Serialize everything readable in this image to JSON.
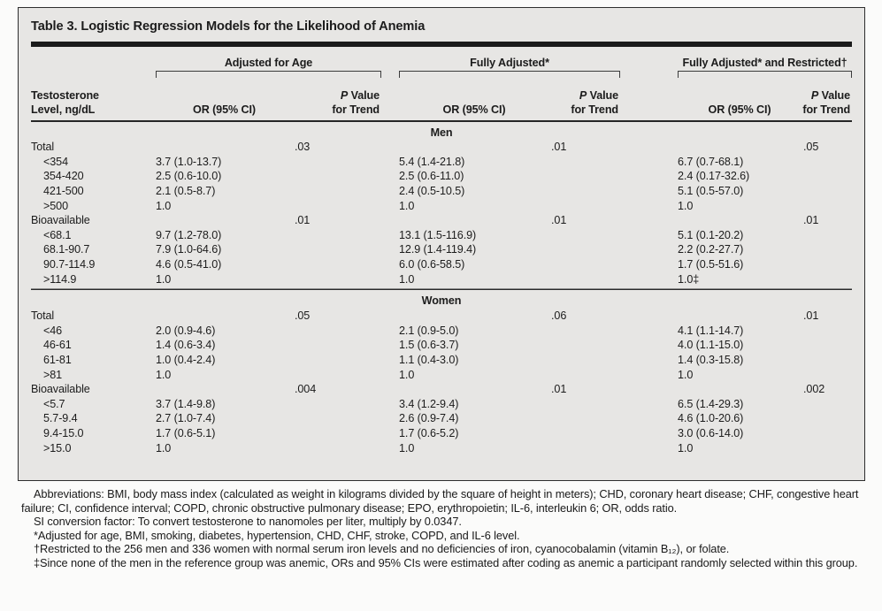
{
  "table": {
    "title": "Table 3. Logistic Regression Models for the Likelihood of Anemia",
    "stub_header_line1": "Testosterone",
    "stub_header_line2": "Level, ng/dL",
    "groups": [
      {
        "title": "Adjusted for Age",
        "or_header": "OR (95% CI)",
        "p_italic": "P",
        "p_rest": " Value",
        "p_line2": "for Trend"
      },
      {
        "title": "Fully Adjusted*",
        "or_header": "OR (95% CI)",
        "p_italic": "P",
        "p_rest": " Value",
        "p_line2": "for Trend"
      },
      {
        "title": "Fully Adjusted* and Restricted†",
        "or_header": "OR (95% CI)",
        "p_italic": "P",
        "p_rest": " Value",
        "p_line2": "for Trend"
      }
    ],
    "sections": [
      {
        "label": "Men",
        "rows": [
          {
            "label": "Total",
            "indent": false,
            "or1": "",
            "p1": ".03",
            "or2": "",
            "p2": ".01",
            "or3": "",
            "p3": ".05"
          },
          {
            "label": "<354",
            "indent": true,
            "or1": "3.7 (1.0-13.7)",
            "p1": "",
            "or2": "5.4 (1.4-21.8)",
            "p2": "",
            "or3": "6.7 (0.7-68.1)",
            "p3": ""
          },
          {
            "label": "354-420",
            "indent": true,
            "or1": "2.5 (0.6-10.0)",
            "p1": "",
            "or2": "2.5 (0.6-11.0)",
            "p2": "",
            "or3": "2.4 (0.17-32.6)",
            "p3": ""
          },
          {
            "label": "421-500",
            "indent": true,
            "or1": "2.1 (0.5-8.7)",
            "p1": "",
            "or2": "2.4 (0.5-10.5)",
            "p2": "",
            "or3": "5.1 (0.5-57.0)",
            "p3": ""
          },
          {
            "label": ">500",
            "indent": true,
            "or1": "1.0",
            "p1": "",
            "or2": "1.0",
            "p2": "",
            "or3": "1.0",
            "p3": ""
          },
          {
            "label": "Bioavailable",
            "indent": false,
            "or1": "",
            "p1": ".01",
            "or2": "",
            "p2": ".01",
            "or3": "",
            "p3": ".01"
          },
          {
            "label": "<68.1",
            "indent": true,
            "or1": "9.7 (1.2-78.0)",
            "p1": "",
            "or2": "13.1 (1.5-116.9)",
            "p2": "",
            "or3": "5.1 (0.1-20.2)",
            "p3": ""
          },
          {
            "label": "68.1-90.7",
            "indent": true,
            "or1": "7.9 (1.0-64.6)",
            "p1": "",
            "or2": "12.9 (1.4-119.4)",
            "p2": "",
            "or3": "2.2 (0.2-27.7)",
            "p3": ""
          },
          {
            "label": "90.7-114.9",
            "indent": true,
            "or1": "4.6 (0.5-41.0)",
            "p1": "",
            "or2": "6.0 (0.6-58.5)",
            "p2": "",
            "or3": "1.7 (0.5-51.6)",
            "p3": ""
          },
          {
            "label": ">114.9",
            "indent": true,
            "or1": "1.0",
            "p1": "",
            "or2": "1.0",
            "p2": "",
            "or3": "1.0‡",
            "p3": ""
          }
        ]
      },
      {
        "label": "Women",
        "rows": [
          {
            "label": "Total",
            "indent": false,
            "or1": "",
            "p1": ".05",
            "or2": "",
            "p2": ".06",
            "or3": "",
            "p3": ".01"
          },
          {
            "label": "<46",
            "indent": true,
            "or1": "2.0 (0.9-4.6)",
            "p1": "",
            "or2": "2.1 (0.9-5.0)",
            "p2": "",
            "or3": "4.1 (1.1-14.7)",
            "p3": ""
          },
          {
            "label": "46-61",
            "indent": true,
            "or1": "1.4 (0.6-3.4)",
            "p1": "",
            "or2": "1.5 (0.6-3.7)",
            "p2": "",
            "or3": "4.0 (1.1-15.0)",
            "p3": ""
          },
          {
            "label": "61-81",
            "indent": true,
            "or1": "1.0 (0.4-2.4)",
            "p1": "",
            "or2": "1.1 (0.4-3.0)",
            "p2": "",
            "or3": "1.4 (0.3-15.8)",
            "p3": ""
          },
          {
            "label": ">81",
            "indent": true,
            "or1": "1.0",
            "p1": "",
            "or2": "1.0",
            "p2": "",
            "or3": "1.0",
            "p3": ""
          },
          {
            "label": "Bioavailable",
            "indent": false,
            "or1": "",
            "p1": ".004",
            "or2": "",
            "p2": ".01",
            "or3": "",
            "p3": ".002"
          },
          {
            "label": "<5.7",
            "indent": true,
            "or1": "3.7 (1.4-9.8)",
            "p1": "",
            "or2": "3.4 (1.2-9.4)",
            "p2": "",
            "or3": "6.5 (1.4-29.3)",
            "p3": ""
          },
          {
            "label": "5.7-9.4",
            "indent": true,
            "or1": "2.7 (1.0-7.4)",
            "p1": "",
            "or2": "2.6 (0.9-7.4)",
            "p2": "",
            "or3": "4.6 (1.0-20.6)",
            "p3": ""
          },
          {
            "label": "9.4-15.0",
            "indent": true,
            "or1": "1.7 (0.6-5.1)",
            "p1": "",
            "or2": "1.7 (0.6-5.2)",
            "p2": "",
            "or3": "3.0 (0.6-14.0)",
            "p3": ""
          },
          {
            "label": ">15.0",
            "indent": true,
            "or1": "1.0",
            "p1": "",
            "or2": "1.0",
            "p2": "",
            "or3": "1.0",
            "p3": ""
          }
        ]
      }
    ]
  },
  "footnotes": [
    "Abbreviations: BMI, body mass index (calculated as weight in kilograms divided by the square of height in meters); CHD, coronary heart disease; CHF, congestive heart failure; CI, confidence interval; COPD, chronic obstructive pulmonary disease; EPO, erythropoietin; IL-6, interleukin 6; OR, odds ratio.",
    "SI conversion factor: To convert testosterone to nanomoles per liter, multiply by 0.0347.",
    "*Adjusted for age, BMI, smoking, diabetes, hypertension, CHD, CHF, stroke, COPD, and IL-6 level.",
    "†Restricted to the 256 men and 336 women with normal serum iron levels and no deficiencies of iron, cyanocobalamin (vitamin B₁₂), or folate.",
    "‡Since none of the men in the reference group was anemic, ORs and 95% CIs were estimated after coding as anemic a participant randomly selected within this group."
  ],
  "colors": {
    "box_background": "#e7e6e4",
    "rule": "#1b1b1b",
    "text": "#1c1c1c",
    "page_background": "#fbfbfa"
  }
}
